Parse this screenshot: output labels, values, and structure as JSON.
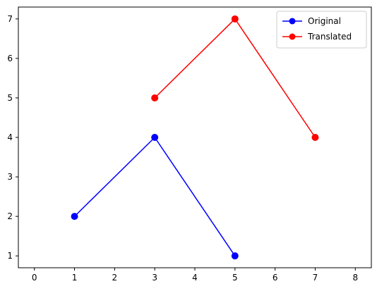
{
  "chart_data": {
    "type": "line",
    "title": "",
    "xlabel": "",
    "ylabel": "",
    "xlim": [
      -0.4,
      8.4
    ],
    "ylim": [
      0.7,
      7.3
    ],
    "xticks": [
      0,
      1,
      2,
      3,
      4,
      5,
      6,
      7,
      8
    ],
    "yticks": [
      1,
      2,
      3,
      4,
      5,
      6,
      7
    ],
    "grid": false,
    "legend_position": "top-right",
    "series": [
      {
        "name": "Original",
        "color": "#0000ff",
        "marker": "circle",
        "points": [
          [
            1,
            2
          ],
          [
            3,
            4
          ],
          [
            5,
            1
          ]
        ]
      },
      {
        "name": "Translated",
        "color": "#ff0000",
        "marker": "circle",
        "points": [
          [
            3,
            5
          ],
          [
            5,
            7
          ],
          [
            7,
            4
          ]
        ]
      }
    ]
  }
}
